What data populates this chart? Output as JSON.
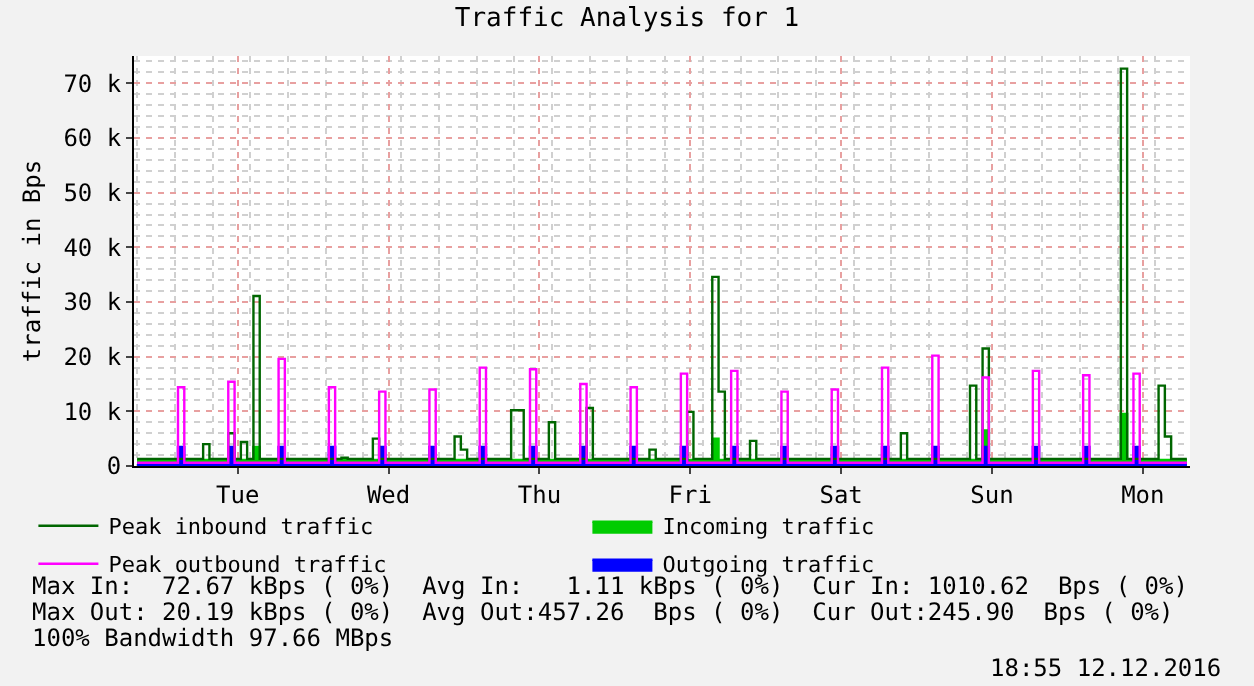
{
  "chart_data": {
    "type": "step",
    "title": "Traffic Analysis for 1",
    "ylabel": "traffic in Bps",
    "categories": [
      null,
      null,
      null,
      null,
      null,
      null,
      null,
      null,
      null,
      null,
      null,
      null,
      null,
      null,
      null,
      null,
      "Tue",
      null,
      null,
      null,
      null,
      null,
      null,
      null,
      null,
      null,
      null,
      null,
      null,
      null,
      null,
      null,
      null,
      null,
      null,
      null,
      null,
      null,
      null,
      null,
      "Wed",
      null,
      null,
      null,
      null,
      null,
      null,
      null,
      null,
      null,
      null,
      null,
      null,
      null,
      null,
      null,
      null,
      null,
      null,
      null,
      null,
      null,
      null,
      null,
      "Thu",
      null,
      null,
      null,
      null,
      null,
      null,
      null,
      null,
      null,
      null,
      null,
      null,
      null,
      null,
      null,
      null,
      null,
      null,
      null,
      null,
      null,
      null,
      null,
      "Fri",
      null,
      null,
      null,
      null,
      null,
      null,
      null,
      null,
      null,
      null,
      null,
      null,
      null,
      null,
      null,
      null,
      null,
      null,
      null,
      null,
      null,
      null,
      null,
      "Sat",
      null,
      null,
      null,
      null,
      null,
      null,
      null,
      null,
      null,
      null,
      null,
      null,
      null,
      null,
      null,
      null,
      null,
      null,
      null,
      null,
      null,
      null,
      null,
      "Sun",
      null,
      null,
      null,
      null,
      null,
      null,
      null,
      null,
      null,
      null,
      null,
      null,
      null,
      null,
      null,
      null,
      null,
      null,
      null,
      null,
      null,
      null,
      null,
      "Mon",
      null,
      null,
      null,
      null,
      null,
      null,
      null
    ],
    "ylim": [
      0,
      75000
    ],
    "yticks": [
      {
        "value": 0,
        "label": "0"
      },
      {
        "value": 10000,
        "label": "10 k"
      },
      {
        "value": 20000,
        "label": "20 k"
      },
      {
        "value": 30000,
        "label": "30 k"
      },
      {
        "value": 40000,
        "label": "40 k"
      },
      {
        "value": 50000,
        "label": "50 k"
      },
      {
        "value": 60000,
        "label": "60 k"
      },
      {
        "value": 70000,
        "label": "70 k"
      }
    ],
    "grid": true,
    "legend": "bottom left",
    "series": [
      {
        "name": "Peak inbound traffic",
        "color": "#006600",
        "values": [
          1300,
          1300,
          1300,
          1300,
          1300,
          1300,
          1300,
          1300,
          1300,
          1300,
          1300,
          4000,
          1300,
          1300,
          1300,
          6000,
          1300,
          4400,
          1300,
          31100,
          1300,
          1300,
          1300,
          1300,
          1300,
          1300,
          1300,
          1300,
          1300,
          1300,
          1300,
          1300,
          1300,
          1500,
          1300,
          1300,
          1300,
          1300,
          5000,
          1300,
          1300,
          1300,
          1300,
          1300,
          1300,
          1300,
          1300,
          1300,
          1300,
          1300,
          1300,
          5400,
          3000,
          1300,
          1300,
          1300,
          1300,
          1300,
          1300,
          1300,
          10200,
          10200,
          1300,
          1300,
          1300,
          1300,
          8000,
          1300,
          1300,
          1300,
          1300,
          1300,
          10600,
          1300,
          1300,
          1300,
          1300,
          1300,
          1300,
          1300,
          1300,
          1300,
          3000,
          1300,
          1300,
          1300,
          1300,
          1300,
          9900,
          1300,
          1300,
          1300,
          34600,
          13600,
          1300,
          1300,
          1300,
          1300,
          4600,
          1300,
          1300,
          1300,
          1300,
          1300,
          1300,
          1300,
          1300,
          1300,
          1300,
          1300,
          1300,
          1300,
          1300,
          1300,
          1300,
          1300,
          1300,
          1300,
          1300,
          1300,
          1300,
          1300,
          6000,
          1300,
          1300,
          1300,
          1300,
          1300,
          1300,
          1300,
          1300,
          1300,
          1300,
          14700,
          1300,
          21500,
          1300,
          1300,
          1300,
          1300,
          1300,
          1300,
          1300,
          1300,
          1300,
          1300,
          1300,
          1300,
          1300,
          1300,
          1300,
          1300,
          1300,
          1300,
          1300,
          1300,
          1300,
          72700,
          1300,
          1300,
          1300,
          1300,
          1300,
          14700,
          5400,
          1300,
          1300,
          1300
        ]
      },
      {
        "name": "Incoming traffic",
        "type": "area",
        "color": "#00cc00",
        "values": [
          1100,
          1100,
          1100,
          1100,
          1100,
          1100,
          1100,
          1100,
          1100,
          1100,
          1100,
          1100,
          1100,
          1100,
          1100,
          1100,
          1100,
          1100,
          1100,
          3500,
          1100,
          1100,
          1100,
          1100,
          1100,
          1100,
          1100,
          1100,
          1100,
          1100,
          1100,
          1100,
          1100,
          1100,
          1100,
          1100,
          1100,
          1100,
          1100,
          1100,
          1100,
          1100,
          1100,
          1100,
          1100,
          1100,
          1100,
          1100,
          1100,
          1100,
          1100,
          1100,
          1100,
          1100,
          1100,
          1100,
          1100,
          1100,
          1100,
          1100,
          1100,
          1100,
          1100,
          1100,
          1100,
          1100,
          1100,
          1100,
          1100,
          1100,
          1100,
          1100,
          1100,
          1100,
          1100,
          1100,
          1100,
          1100,
          1100,
          1100,
          1100,
          1100,
          1100,
          1100,
          1100,
          1100,
          1100,
          1100,
          1100,
          1100,
          1100,
          1100,
          5000,
          1100,
          1100,
          1100,
          1100,
          1100,
          1100,
          1100,
          1100,
          1100,
          1100,
          1100,
          1100,
          1100,
          1100,
          1100,
          1100,
          1100,
          1100,
          1100,
          1100,
          1100,
          1100,
          1100,
          1100,
          1100,
          1100,
          1100,
          1100,
          1100,
          1100,
          1100,
          1100,
          1100,
          1100,
          1100,
          1100,
          1100,
          1100,
          1100,
          1100,
          1100,
          1100,
          6500,
          1100,
          1100,
          1100,
          1100,
          1100,
          1100,
          1100,
          1100,
          1100,
          1100,
          1100,
          1100,
          1100,
          1100,
          1100,
          1100,
          1100,
          1100,
          1100,
          1100,
          1100,
          9500,
          1100,
          1100,
          1100,
          1100,
          1100,
          1100,
          1100,
          1100,
          1100,
          1100
        ]
      },
      {
        "name": "Peak outbound traffic",
        "color": "#ff00ff",
        "values": [
          600,
          600,
          600,
          600,
          600,
          600,
          600,
          14400,
          600,
          600,
          600,
          600,
          600,
          600,
          600,
          15400,
          600,
          600,
          600,
          600,
          600,
          600,
          600,
          19600,
          600,
          600,
          600,
          600,
          600,
          600,
          600,
          14400,
          600,
          600,
          600,
          600,
          600,
          600,
          600,
          13600,
          600,
          600,
          600,
          600,
          600,
          600,
          600,
          14000,
          600,
          600,
          600,
          600,
          600,
          600,
          600,
          18000,
          600,
          600,
          600,
          600,
          600,
          600,
          600,
          17700,
          600,
          600,
          600,
          600,
          600,
          600,
          600,
          15000,
          600,
          600,
          600,
          600,
          600,
          600,
          600,
          14400,
          600,
          600,
          600,
          600,
          600,
          600,
          600,
          16900,
          600,
          600,
          600,
          600,
          600,
          600,
          600,
          17400,
          600,
          600,
          600,
          600,
          600,
          600,
          600,
          13600,
          600,
          600,
          600,
          600,
          600,
          600,
          600,
          14000,
          600,
          600,
          600,
          600,
          600,
          600,
          600,
          18000,
          600,
          600,
          600,
          600,
          600,
          600,
          600,
          20200,
          600,
          600,
          600,
          600,
          600,
          600,
          600,
          16200,
          600,
          600,
          600,
          600,
          600,
          600,
          600,
          17400,
          600,
          600,
          600,
          600,
          600,
          600,
          600,
          16600,
          600,
          600,
          600,
          600,
          600,
          600,
          600,
          16900,
          600,
          600,
          600,
          600,
          600,
          600,
          600,
          600
        ]
      },
      {
        "name": "Outgoing traffic",
        "type": "area",
        "color": "#0000ff",
        "values": [
          500,
          500,
          500,
          500,
          500,
          500,
          500,
          3500,
          500,
          500,
          500,
          500,
          500,
          500,
          500,
          3500,
          500,
          500,
          500,
          500,
          500,
          500,
          500,
          3500,
          500,
          500,
          500,
          500,
          500,
          500,
          500,
          3500,
          500,
          500,
          500,
          500,
          500,
          500,
          500,
          3500,
          500,
          500,
          500,
          500,
          500,
          500,
          500,
          3500,
          500,
          500,
          500,
          500,
          500,
          500,
          500,
          3500,
          500,
          500,
          500,
          500,
          500,
          500,
          500,
          3500,
          500,
          500,
          500,
          500,
          500,
          500,
          500,
          3500,
          500,
          500,
          500,
          500,
          500,
          500,
          500,
          3500,
          500,
          500,
          500,
          500,
          500,
          500,
          500,
          3500,
          500,
          500,
          500,
          500,
          500,
          500,
          500,
          3500,
          500,
          500,
          500,
          500,
          500,
          500,
          500,
          3500,
          500,
          500,
          500,
          500,
          500,
          500,
          500,
          3500,
          500,
          500,
          500,
          500,
          500,
          500,
          500,
          3500,
          500,
          500,
          500,
          500,
          500,
          500,
          500,
          3500,
          500,
          500,
          500,
          500,
          500,
          500,
          500,
          3500,
          500,
          500,
          500,
          500,
          500,
          500,
          500,
          3500,
          500,
          500,
          500,
          500,
          500,
          500,
          500,
          3500,
          500,
          500,
          500,
          500,
          500,
          500,
          500,
          3500,
          500,
          500,
          500,
          500,
          500,
          500,
          500,
          500
        ]
      }
    ],
    "annotations": [
      "Max In:  72.67 kBps ( 0%)  Avg In:   1.11 kBps ( 0%)  Cur In: 1010.62  Bps ( 0%)",
      "Max Out: 20.19 kBps ( 0%)  Avg Out:457.26  Bps ( 0%)  Cur Out:245.90  Bps ( 0%)",
      "100% Bandwidth 97.66 MBps",
      "18:55 12.12.2016"
    ]
  }
}
